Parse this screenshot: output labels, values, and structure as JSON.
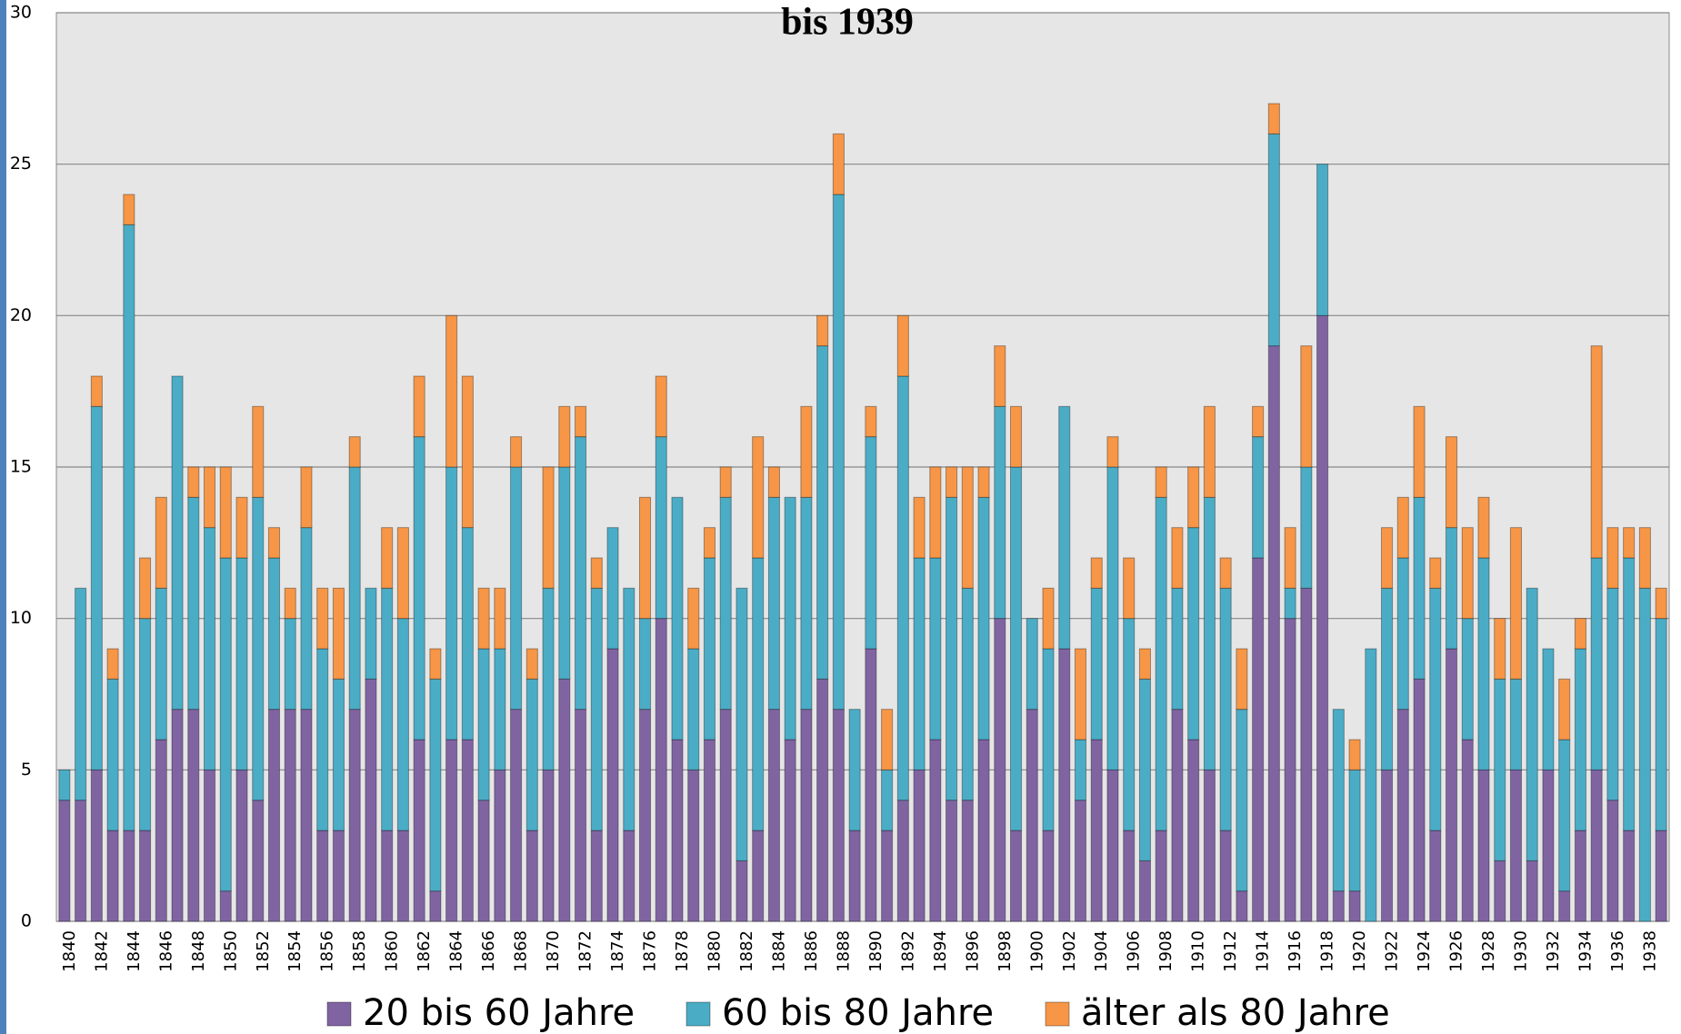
{
  "chart_data": {
    "type": "stacked_bar",
    "title": "bis 1939",
    "categories": [
      "1840",
      null,
      "1842",
      null,
      "1844",
      null,
      "1846",
      null,
      "1848",
      null,
      "1850",
      null,
      "1852",
      null,
      "1854",
      null,
      "1856",
      null,
      "1858",
      null,
      "1860",
      null,
      "1862",
      null,
      "1864",
      null,
      "1866",
      null,
      "1868",
      null,
      "1870",
      null,
      "1872",
      null,
      "1874",
      null,
      "1876",
      null,
      "1878",
      null,
      "1880",
      null,
      "1882",
      null,
      "1884",
      null,
      "1886",
      null,
      "1888",
      null,
      "1890",
      null,
      "1892",
      null,
      "1894",
      null,
      "1896",
      null,
      "1898",
      null,
      "1900",
      null,
      "1902",
      null,
      "1904",
      null,
      "1906",
      null,
      "1908",
      null,
      "1910",
      null,
      "1912",
      null,
      "1914",
      null,
      "1916",
      null,
      "1918",
      null,
      "1920",
      null,
      "1922",
      null,
      "1924",
      null,
      "1926",
      null,
      "1928",
      null,
      "1930",
      null,
      "1932",
      null,
      "1934",
      null,
      "1936",
      null,
      "1938",
      null
    ],
    "series": [
      {
        "name": "20 bis 60 Jahre",
        "color": "#8064a2",
        "values": [
          4,
          4,
          5,
          3,
          3,
          3,
          6,
          7,
          7,
          5,
          1,
          5,
          4,
          7,
          7,
          7,
          3,
          3,
          7,
          8,
          3,
          3,
          6,
          1,
          6,
          6,
          4,
          5,
          7,
          3,
          5,
          8,
          7,
          3,
          9,
          3,
          7,
          10,
          6,
          5,
          6,
          7,
          2,
          3,
          7,
          6,
          7,
          8,
          7,
          3,
          9,
          3,
          4,
          5,
          6,
          4,
          4,
          6,
          10,
          3,
          7,
          3,
          9,
          4,
          6,
          5,
          3,
          2,
          3,
          7,
          6,
          5,
          3,
          1,
          12,
          19,
          10,
          11,
          20,
          1,
          1,
          0,
          5,
          7,
          8,
          3,
          9,
          6,
          5,
          2,
          5,
          2,
          5,
          1,
          3,
          5,
          4,
          3,
          0,
          3
        ]
      },
      {
        "name": "60 bis 80 Jahre",
        "color": "#4bacc6",
        "values": [
          1,
          7,
          12,
          5,
          20,
          7,
          5,
          11,
          7,
          8,
          11,
          7,
          10,
          5,
          3,
          6,
          6,
          5,
          8,
          3,
          8,
          7,
          10,
          7,
          9,
          7,
          5,
          4,
          8,
          5,
          6,
          7,
          9,
          8,
          4,
          8,
          3,
          6,
          8,
          4,
          6,
          7,
          9,
          9,
          7,
          8,
          7,
          11,
          17,
          4,
          7,
          2,
          14,
          7,
          6,
          10,
          7,
          8,
          7,
          12,
          3,
          6,
          8,
          2,
          5,
          10,
          7,
          6,
          11,
          4,
          7,
          9,
          8,
          6,
          4,
          7,
          1,
          4,
          5,
          6,
          4,
          9,
          6,
          5,
          6,
          8,
          4,
          4,
          7,
          6,
          3,
          9,
          4,
          5,
          6,
          7,
          7,
          9,
          11,
          7
        ]
      },
      {
        "name": "älter als 80 Jahre",
        "color": "#f79646",
        "values": [
          0,
          0,
          1,
          1,
          1,
          2,
          3,
          0,
          1,
          2,
          3,
          2,
          3,
          1,
          1,
          2,
          2,
          3,
          1,
          0,
          2,
          3,
          2,
          1,
          5,
          5,
          2,
          2,
          1,
          1,
          4,
          2,
          1,
          1,
          0,
          0,
          4,
          2,
          0,
          2,
          1,
          1,
          0,
          4,
          1,
          0,
          3,
          1,
          2,
          0,
          1,
          2,
          2,
          2,
          3,
          1,
          4,
          1,
          2,
          2,
          0,
          2,
          0,
          3,
          1,
          1,
          2,
          1,
          1,
          2,
          2,
          3,
          1,
          2,
          1,
          1,
          2,
          4,
          0,
          0,
          1,
          0,
          2,
          2,
          3,
          1,
          3,
          3,
          2,
          2,
          5,
          0,
          0,
          2,
          1,
          7,
          2,
          1,
          2,
          1
        ]
      }
    ],
    "ylim": [
      0,
      30
    ],
    "yticks": [
      0,
      5,
      10,
      15,
      20,
      25,
      30
    ],
    "grid": true
  }
}
